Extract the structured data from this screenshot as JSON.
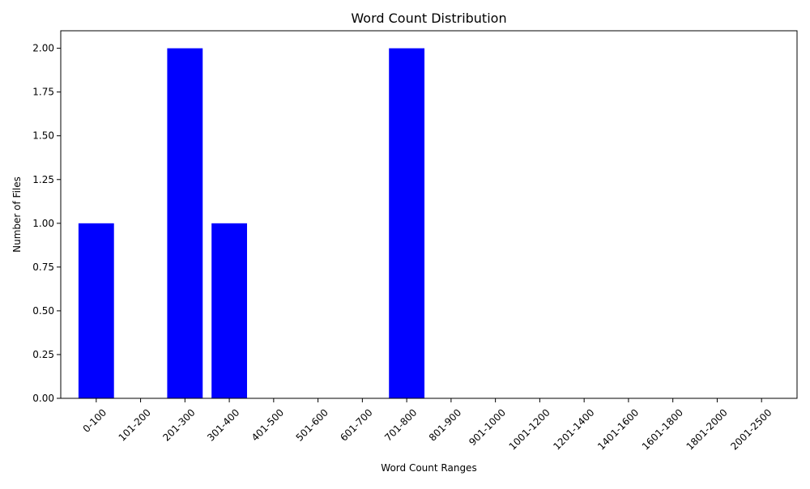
{
  "chart_data": {
    "type": "bar",
    "title": "Word Count Distribution",
    "xlabel": "Word Count Ranges",
    "ylabel": "Number of Files",
    "categories": [
      "0-100",
      "101-200",
      "201-300",
      "301-400",
      "401-500",
      "501-600",
      "601-700",
      "701-800",
      "801-900",
      "901-1000",
      "1001-1200",
      "1201-1400",
      "1401-1600",
      "1601-1800",
      "1801-2000",
      "2001-2500"
    ],
    "values": [
      1,
      0,
      2,
      1,
      0,
      0,
      0,
      2,
      0,
      0,
      0,
      0,
      0,
      0,
      0,
      0
    ],
    "ylim": [
      0,
      2.1
    ],
    "yticks": [
      0.0,
      0.25,
      0.5,
      0.75,
      1.0,
      1.25,
      1.5,
      1.75,
      2.0
    ],
    "ytick_labels": [
      "0.00",
      "0.25",
      "0.50",
      "0.75",
      "1.00",
      "1.25",
      "1.50",
      "1.75",
      "2.00"
    ],
    "x_tick_rotation_deg": 45,
    "bar_color": "#0000ff",
    "grid": false,
    "legend": "none"
  }
}
